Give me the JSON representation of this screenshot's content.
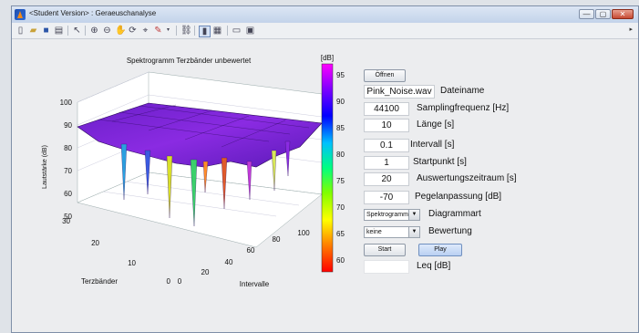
{
  "window": {
    "title": "<Student Version> : Geraeuschanalyse"
  },
  "window_controls": {
    "minimize": "—",
    "maximize": "▢",
    "close": "✕"
  },
  "toolbar": {
    "icons": [
      "new-figure-icon",
      "open-file-icon",
      "save-icon",
      "print-icon",
      "pointer-icon",
      "zoom-in-icon",
      "zoom-out-icon",
      "pan-icon",
      "rotate-icon",
      "data-cursor-icon",
      "brush-icon",
      "link-icon",
      "colorbar-icon",
      "legend-icon",
      "hide-plot-icon",
      "show-plot-icon"
    ]
  },
  "plot": {
    "title": "Spektrogramm Terzbänder unbewertet",
    "zlabel": "Lautstärke (dB)",
    "xlabel": "Terzbänder",
    "ylabel": "Intervalle",
    "z_ticks": [
      "50",
      "60",
      "70",
      "80",
      "90",
      "100"
    ],
    "x_ticks": [
      "0",
      "10",
      "20",
      "30"
    ],
    "y_ticks": [
      "0",
      "20",
      "40",
      "60",
      "80",
      "100"
    ]
  },
  "colorbar": {
    "unit": "[dB]",
    "ticks": [
      "95",
      "90",
      "85",
      "80",
      "75",
      "70",
      "65",
      "60"
    ],
    "colors": [
      "#ff00ff",
      "#8000ff",
      "#0000ff",
      "#00c0ff",
      "#00ff80",
      "#80ff00",
      "#ffff00",
      "#ff8000",
      "#ff0000"
    ]
  },
  "controls": {
    "open_button": "Öffnen",
    "filename": {
      "value": "Pink_Noise.wav",
      "label": "Dateiname"
    },
    "sampling": {
      "value": "44100",
      "label": "Samplingfrequenz [Hz]"
    },
    "length": {
      "value": "10",
      "label": "Länge [s]"
    },
    "interval": {
      "value": "0.1",
      "label": "Intervall [s]"
    },
    "start_point": {
      "value": "1",
      "label": "Startpunkt [s]"
    },
    "evaluation_period": {
      "value": "20",
      "label": "Auswertungszeitraum [s]"
    },
    "level_adjust": {
      "value": "-70",
      "label": "Pegelanpassung [dB]"
    },
    "diagram_type": {
      "selected": "Spektrogramm",
      "label": "Diagrammart"
    },
    "weighting": {
      "selected": "keine",
      "label": "Bewertung"
    },
    "start_button": "Start",
    "play_button": "Play",
    "leq": {
      "value": "",
      "label": "Leq [dB]"
    }
  }
}
